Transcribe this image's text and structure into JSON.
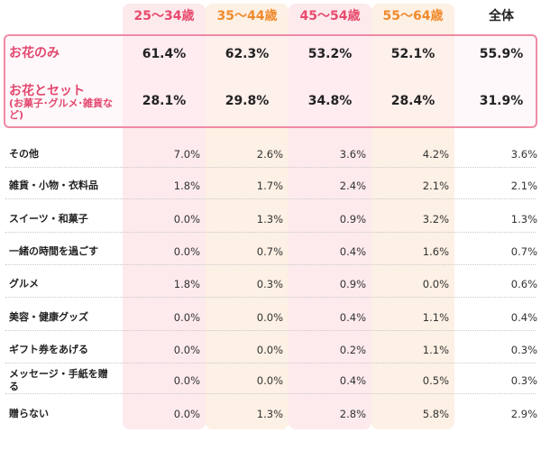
{
  "colors": {
    "age1": "#e84b6e",
    "age2": "#f08a2c",
    "age3": "#e84b6e",
    "age4": "#f08a2c",
    "all": "#222222",
    "highlight_border": "#f08aa5",
    "highlight_text": "#e2476e"
  },
  "chart_data": {
    "type": "table",
    "columns": [
      "25〜34歳",
      "35〜44歳",
      "45〜54歳",
      "55〜64歳",
      "全体"
    ],
    "highlight_rows": [
      {
        "label": "お花のみ",
        "sublabel": "",
        "values": [
          "61.4%",
          "62.3%",
          "53.2%",
          "52.1%",
          "55.9%"
        ]
      },
      {
        "label": "お花とセット",
        "sublabel": "(お菓子･グルメ･雑貨など)",
        "values": [
          "28.1%",
          "29.8%",
          "34.8%",
          "28.4%",
          "31.9%"
        ]
      }
    ],
    "rows": [
      {
        "label": "その他",
        "values": [
          "7.0%",
          "2.6%",
          "3.6%",
          "4.2%",
          "3.6%"
        ]
      },
      {
        "label": "雑貨・小物・衣料品",
        "values": [
          "1.8%",
          "1.7%",
          "2.4%",
          "2.1%",
          "2.1%"
        ]
      },
      {
        "label": "スイーツ・和菓子",
        "values": [
          "0.0%",
          "1.3%",
          "0.9%",
          "3.2%",
          "1.3%"
        ]
      },
      {
        "label": "一緒の時間を過ごす",
        "values": [
          "0.0%",
          "0.7%",
          "0.4%",
          "1.6%",
          "0.7%"
        ]
      },
      {
        "label": "グルメ",
        "values": [
          "1.8%",
          "0.3%",
          "0.9%",
          "0.0%",
          "0.6%"
        ]
      },
      {
        "label": "美容・健康グッズ",
        "values": [
          "0.0%",
          "0.0%",
          "0.4%",
          "1.1%",
          "0.4%"
        ]
      },
      {
        "label": "ギフト券をあげる",
        "values": [
          "0.0%",
          "0.0%",
          "0.2%",
          "1.1%",
          "0.3%"
        ]
      },
      {
        "label": "メッセージ・手紙を贈る",
        "values": [
          "0.0%",
          "0.0%",
          "0.4%",
          "0.5%",
          "0.3%"
        ]
      },
      {
        "label": "贈らない",
        "values": [
          "0.0%",
          "1.3%",
          "2.8%",
          "5.8%",
          "2.9%"
        ]
      }
    ]
  }
}
